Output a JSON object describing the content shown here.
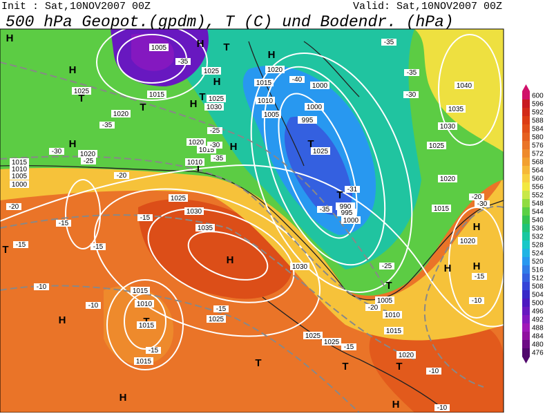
{
  "header": {
    "init": "Init : Sat,10NOV2007 00Z",
    "valid": "Valid: Sat,10NOV2007 00Z",
    "title": "500 hPa Geopot.(gpdm), T (C) und Bodendr. (hPa)"
  },
  "colorbar": {
    "ticks": [
      600,
      596,
      592,
      588,
      584,
      580,
      576,
      572,
      568,
      564,
      560,
      556,
      552,
      548,
      544,
      540,
      536,
      532,
      528,
      524,
      520,
      516,
      512,
      508,
      504,
      500,
      496,
      492,
      488,
      484,
      480,
      476
    ],
    "colors": [
      "#d0106a",
      "#c81a20",
      "#d22a18",
      "#dc3c14",
      "#e24e18",
      "#e66020",
      "#ea7428",
      "#ee8a2c",
      "#f2a030",
      "#f6b838",
      "#f8d040",
      "#f2e840",
      "#c8e848",
      "#90dc40",
      "#5cd044",
      "#36c450",
      "#20c478",
      "#18c8a0",
      "#18c8c8",
      "#20b4e4",
      "#2898f0",
      "#307ce8",
      "#3460e0",
      "#3444d8",
      "#3828c8",
      "#4c18c0",
      "#6818c0",
      "#8418c0",
      "#a018b8",
      "#9010a0",
      "#6c0c84",
      "#50086c"
    ]
  },
  "map": {
    "pressure_centers": [
      "H",
      "H",
      "T",
      "H",
      "H",
      "T",
      "T",
      "H",
      "T",
      "H",
      "H",
      "H",
      "T",
      "T",
      "T",
      "T",
      "H",
      "H",
      "T",
      "H",
      "H",
      "T",
      "T",
      "T",
      "T",
      "H",
      "H",
      "H"
    ],
    "isobar_labels": [
      1005,
      1025,
      1020,
      1015,
      1000,
      1015,
      1025,
      1030,
      1010,
      1005,
      1020,
      1025,
      1000,
      995,
      1025,
      1020,
      1015,
      1010,
      1020,
      1015,
      1010,
      1005,
      1000,
      1025,
      1030,
      1035,
      990,
      995,
      1000,
      1030,
      1040,
      1035,
      1030,
      1025,
      1020,
      1015,
      1020,
      1015,
      1010,
      1015,
      1025,
      1025,
      1025,
      1015,
      1020,
      1005,
      1010,
      1015
    ],
    "isotherm_labels": [
      -35,
      -40,
      -35,
      -35,
      -30,
      -35,
      -25,
      -30,
      -35,
      -30,
      -25,
      -20,
      -20,
      -30,
      -20,
      -15,
      -15,
      -15,
      -10,
      -15,
      -10,
      -15,
      -15,
      -35,
      -31,
      -25,
      -20,
      -15,
      -10,
      -10,
      -15,
      -10
    ]
  }
}
